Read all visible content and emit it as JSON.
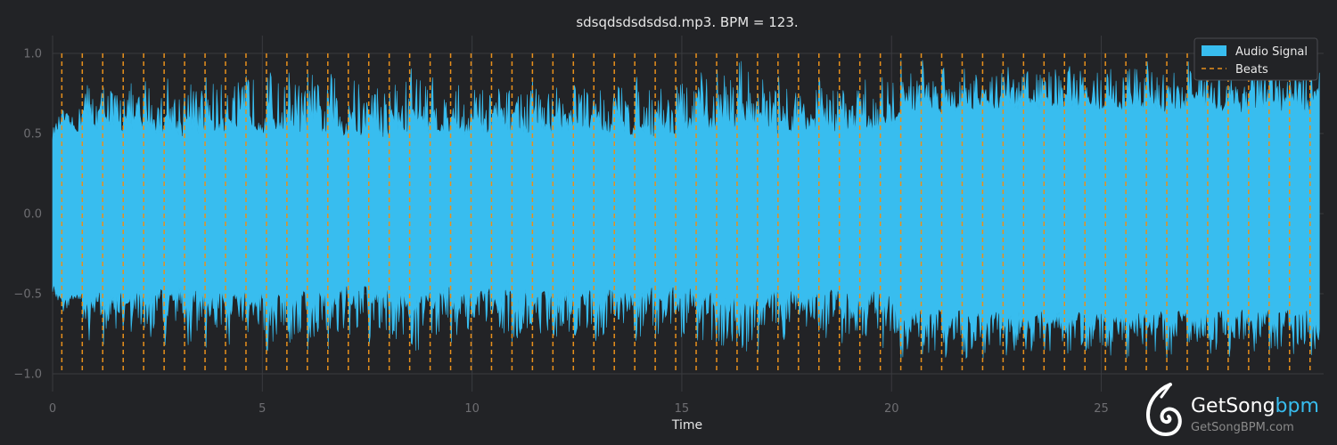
{
  "colors": {
    "background": "#222326",
    "signal": "#38bdef",
    "beats": "#e8901c",
    "grid": "#3a3b3f",
    "axis_text": "#6e6e72",
    "text": "#e6e6e6"
  },
  "chart_data": {
    "type": "line",
    "title": "sdsqdsdsdsdsd.mp3. BPM = 123.",
    "xlabel": "Time",
    "ylabel": "",
    "xlim": [
      0,
      30.3
    ],
    "ylim": [
      -1.0,
      1.0
    ],
    "x_ticks": [
      "0",
      "5",
      "10",
      "15",
      "20",
      "25"
    ],
    "y_ticks": [
      "1.0",
      "0.5",
      "0.0",
      "−0.5",
      "−1.0"
    ],
    "grid": true,
    "legend_position": "top-right",
    "series": [
      {
        "name": "Audio Signal",
        "kind": "waveform-envelope",
        "envelope_time": [
          0,
          0.2,
          0.6,
          0.7,
          1.5,
          3.0,
          5.0,
          8.0,
          8.9,
          9.0,
          12.0,
          15.0,
          16.7,
          17.0,
          19.0,
          20.0,
          20.2,
          24.0,
          27.0,
          29.0,
          30.2
        ],
        "envelope_peak": [
          0.55,
          0.65,
          0.6,
          0.88,
          0.85,
          0.87,
          0.9,
          0.88,
          0.97,
          0.85,
          0.84,
          0.86,
          1.0,
          0.86,
          0.85,
          0.9,
          0.96,
          0.95,
          0.95,
          0.93,
          0.93
        ],
        "envelope_trough": [
          0.45,
          0.55,
          0.5,
          0.5,
          0.48,
          0.45,
          0.47,
          0.43,
          0.5,
          0.45,
          0.47,
          0.45,
          0.5,
          0.47,
          0.45,
          0.47,
          0.6,
          0.62,
          0.6,
          0.6,
          0.6
        ]
      },
      {
        "name": "Beats",
        "kind": "beat-markers",
        "first_beat": 0.22,
        "interval": 0.4878,
        "last_beat": 30.1
      }
    ]
  },
  "legend": {
    "items": [
      {
        "label": "Audio Signal"
      },
      {
        "label": "Beats"
      }
    ]
  },
  "logo": {
    "brand_main": "GetSong",
    "brand_accent": "bpm",
    "url": "GetSongBPM.com"
  }
}
